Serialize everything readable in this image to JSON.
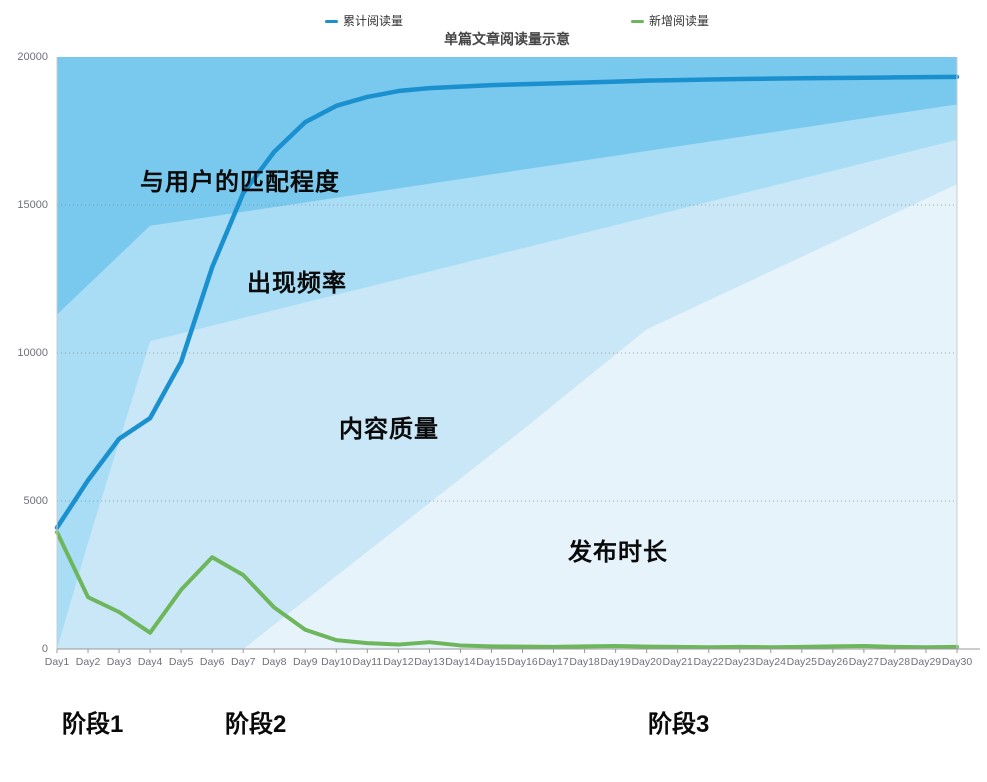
{
  "title": "单篇文章阅读量示意",
  "legend": [
    {
      "key": "cumulative",
      "label": "累计阅读量",
      "color": "#1b90ce"
    },
    {
      "key": "new",
      "label": "新增阅读量",
      "color": "#6db65b"
    }
  ],
  "stages": [
    "阶段1",
    "阶段2",
    "阶段3"
  ],
  "chart_data": {
    "type": "line",
    "title": "单篇文章阅读量示意",
    "xlabel": "",
    "ylabel": "",
    "ylim": [
      0,
      20000
    ],
    "y_ticks": [
      0,
      5000,
      10000,
      15000,
      20000
    ],
    "y_tick_labels": [
      "0",
      "5000",
      "10000",
      "15000",
      "20000"
    ],
    "grid": "horizontal-dotted",
    "legend_position": "top",
    "x_categories": [
      "Day1",
      "Day2",
      "Day3",
      "Day4",
      "Day5",
      "Day6",
      "Day7",
      "Day8",
      "Day9",
      "Day10",
      "Day11",
      "Day12",
      "Day13",
      "Day14",
      "Day15",
      "Day16",
      "Day17",
      "Day18",
      "Day19",
      "Day20",
      "Day21",
      "Day22",
      "Day23",
      "Day24",
      "Day25",
      "Day26",
      "Day27",
      "Day28",
      "Day29",
      "Day30"
    ],
    "series": [
      {
        "key": "cumulative",
        "name": "累计阅读量",
        "color": "#1b90ce",
        "width": 4.5,
        "values": [
          4100,
          5700,
          7100,
          7800,
          9700,
          12900,
          15400,
          16800,
          17800,
          18350,
          18650,
          18850,
          18950,
          19000,
          19050,
          19080,
          19110,
          19140,
          19170,
          19200,
          19220,
          19240,
          19255,
          19270,
          19280,
          19290,
          19300,
          19310,
          19320,
          19330
        ]
      },
      {
        "key": "new",
        "name": "新增阅读量",
        "color": "#6db65b",
        "width": 4,
        "values": [
          3950,
          1750,
          1250,
          550,
          2000,
          3100,
          2500,
          1400,
          650,
          300,
          200,
          150,
          230,
          120,
          90,
          80,
          70,
          90,
          100,
          80,
          70,
          60,
          70,
          60,
          70,
          90,
          100,
          70,
          60,
          70
        ]
      }
    ],
    "area_layers": [
      {
        "key": "match-degree",
        "name": "与用户的匹配程度",
        "color": "#79c8ee",
        "top_edge": [
          [
            1,
            20000
          ],
          [
            30,
            20000
          ]
        ]
      },
      {
        "key": "frequency",
        "name": "出现频率",
        "color": "#a9dcf5",
        "top_edge": [
          [
            1,
            11300
          ],
          [
            4,
            14300
          ],
          [
            30,
            18400
          ]
        ]
      },
      {
        "key": "quality",
        "name": "内容质量",
        "color": "#c9e7f7",
        "top_edge": [
          [
            1,
            0
          ],
          [
            2,
            3600
          ],
          [
            4,
            10400
          ],
          [
            30,
            17200
          ]
        ]
      },
      {
        "key": "duration",
        "name": "发布时长",
        "color": "#e6f3fb",
        "top_edge": [
          [
            7,
            0
          ],
          [
            16,
            7400
          ],
          [
            20,
            10800
          ],
          [
            30,
            15700
          ]
        ]
      }
    ],
    "axis_colors": {
      "grid": "#8a8a8a",
      "axis_bottom": "#999999",
      "axis_side": "#cccccc",
      "tick_text": "#6e7079"
    }
  }
}
